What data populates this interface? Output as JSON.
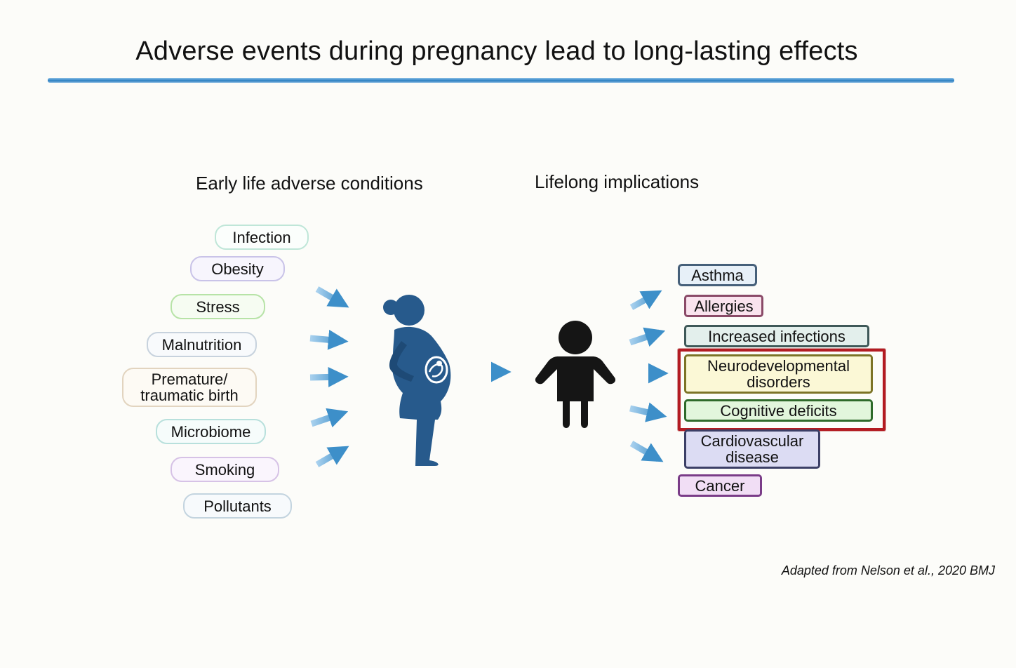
{
  "title": "Adverse events during pregnancy lead to long-lasting effects",
  "headings": {
    "left": "Early life adverse conditions",
    "right": "Lifelong implications"
  },
  "conditions": [
    {
      "lines": [
        "Infection"
      ],
      "color": "#bfe6d8",
      "bg": "#fbfefc"
    },
    {
      "lines": [
        "Obesity"
      ],
      "color": "#c9c3e8",
      "bg": "#f7f5fd"
    },
    {
      "lines": [
        "Stress"
      ],
      "color": "#b7e3a7",
      "bg": "#f6fcf2"
    },
    {
      "lines": [
        "Malnutrition"
      ],
      "color": "#c7d2dd",
      "bg": "#f8fafc"
    },
    {
      "lines": [
        "Premature/",
        "traumatic birth"
      ],
      "color": "#e2d4bf",
      "bg": "#fdfaf4"
    },
    {
      "lines": [
        "Microbiome"
      ],
      "color": "#b8e0dc",
      "bg": "#f6fcfb"
    },
    {
      "lines": [
        "Smoking"
      ],
      "color": "#d6c2e6",
      "bg": "#faf5fd"
    },
    {
      "lines": [
        "Pollutants"
      ],
      "color": "#c3d4df",
      "bg": "#f7fafc"
    }
  ],
  "implications": [
    {
      "lines": [
        "Asthma"
      ],
      "color": "#46607a",
      "bg": "#e7f0f8"
    },
    {
      "lines": [
        "Allergies"
      ],
      "color": "#8a4a68",
      "bg": "#f9e3ee"
    },
    {
      "lines": [
        "Increased infections"
      ],
      "color": "#3e5858",
      "bg": "#e3efec"
    },
    {
      "lines": [
        "Neurodevelopmental",
        "disorders"
      ],
      "color": "#7c7326",
      "bg": "#fbf8d6"
    },
    {
      "lines": [
        "Cognitive deficits"
      ],
      "color": "#2f6a2b",
      "bg": "#e2f6dc"
    },
    {
      "lines": [
        "Cardiovascular",
        "disease"
      ],
      "color": "#3c3f66",
      "bg": "#dcdcf3"
    },
    {
      "lines": [
        "Cancer"
      ],
      "color": "#7a3c88",
      "bg": "#f1def5"
    }
  ],
  "colors": {
    "arrow": "#3d8fc9",
    "mother": "#275a8c",
    "child": "#151515",
    "highlight": "#b31b22"
  },
  "icons": {
    "mother": "pregnant-woman-icon",
    "child": "child-icon"
  },
  "citation": "Adapted from Nelson et al., 2020 BMJ"
}
